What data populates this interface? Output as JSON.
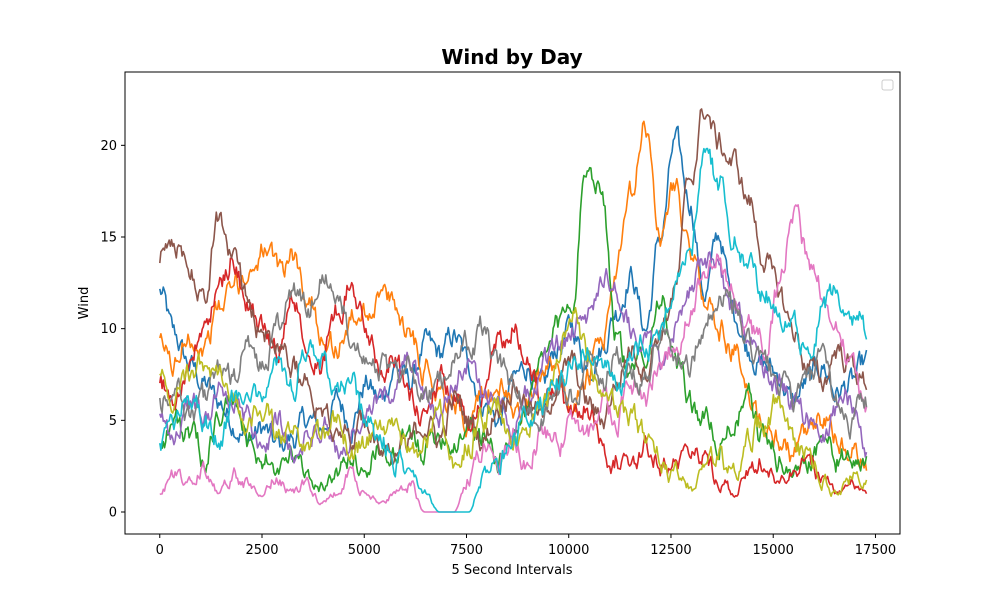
{
  "chart_data": {
    "type": "line",
    "title": "Wind by Day",
    "xlabel": "5 Second Intervals",
    "ylabel": "Wind",
    "xlim": [
      -850,
      18100
    ],
    "ylim": [
      -1.2,
      24.0
    ],
    "x_ticks": [
      0,
      2500,
      5000,
      7500,
      10000,
      12500,
      15000,
      17500
    ],
    "x_tick_labels": [
      "0",
      "2500",
      "5000",
      "7500",
      "10000",
      "12500",
      "15000",
      "17500"
    ],
    "y_ticks": [
      0,
      5,
      10,
      15,
      20
    ],
    "y_tick_labels": [
      "0",
      "5",
      "10",
      "15",
      "20"
    ],
    "grid": false,
    "legend": {
      "placement": "top-right",
      "entries": []
    },
    "x_range": [
      0,
      17280
    ],
    "series": [
      {
        "color": "#1f77b4",
        "values": [
          12.0,
          9.5,
          8.0,
          7.0,
          6.0,
          5.0,
          4.0,
          4.5,
          3.5,
          4.0,
          5.0,
          4.5,
          6.0,
          5.0,
          7.0,
          6.0,
          8.0,
          7.0,
          9.0,
          8.5,
          9.5,
          8.0,
          6.0,
          5.0,
          7.0,
          8.0,
          6.5,
          9.0,
          10.0,
          8.0,
          9.0,
          11.0,
          13.0,
          10.0,
          15.0,
          20.0,
          17.0,
          12.0,
          15.0,
          11.0,
          9.0,
          8.0,
          7.5,
          6.0,
          7.0,
          8.0,
          6.5,
          7.0,
          8.0
        ]
      },
      {
        "color": "#ff7f0e",
        "values": [
          9.0,
          8.0,
          10.0,
          9.0,
          11.0,
          12.0,
          13.0,
          14.5,
          13.0,
          14.0,
          12.0,
          10.0,
          9.0,
          10.5,
          11.0,
          12.0,
          11.0,
          10.0,
          8.0,
          7.0,
          6.0,
          5.0,
          6.0,
          7.0,
          5.5,
          6.0,
          7.0,
          8.0,
          6.0,
          7.0,
          9.0,
          13.0,
          17.0,
          21.0,
          15.0,
          18.0,
          14.0,
          12.0,
          10.0,
          9.0,
          6.0,
          5.0,
          4.0,
          3.0,
          4.0,
          5.0,
          4.0,
          3.0,
          2.5
        ]
      },
      {
        "color": "#2ca02c",
        "values": [
          4.0,
          5.0,
          4.0,
          3.0,
          5.0,
          6.0,
          4.0,
          3.0,
          2.0,
          3.0,
          2.0,
          1.5,
          2.0,
          3.0,
          2.5,
          3.5,
          3.0,
          4.0,
          3.5,
          4.5,
          4.0,
          5.0,
          4.0,
          3.0,
          4.0,
          6.0,
          8.0,
          10.0,
          12.0,
          19.0,
          18.0,
          10.0,
          7.0,
          9.0,
          12.0,
          8.0,
          6.0,
          5.0,
          4.0,
          5.0,
          6.0,
          4.0,
          3.0,
          2.0,
          3.0,
          4.0,
          3.0,
          2.5,
          3.0
        ]
      },
      {
        "color": "#d62728",
        "values": [
          7.0,
          6.0,
          8.0,
          10.0,
          12.0,
          14.0,
          11.0,
          10.0,
          9.0,
          12.0,
          10.0,
          8.0,
          11.0,
          12.5,
          10.0,
          8.0,
          9.0,
          6.0,
          5.0,
          7.0,
          6.0,
          5.0,
          7.0,
          9.0,
          10.5,
          8.0,
          6.0,
          7.0,
          5.0,
          6.0,
          4.0,
          3.0,
          2.0,
          3.5,
          3.0,
          2.5,
          4.0,
          3.0,
          2.0,
          1.0,
          2.0,
          3.0,
          1.5,
          2.0,
          3.0,
          2.0,
          1.0,
          1.5,
          1.0
        ]
      },
      {
        "color": "#9467bd",
        "values": [
          5.0,
          4.0,
          6.0,
          5.0,
          7.0,
          6.0,
          5.0,
          4.0,
          5.0,
          3.0,
          4.0,
          5.0,
          3.0,
          4.0,
          5.0,
          6.0,
          7.0,
          8.0,
          6.0,
          5.0,
          7.0,
          8.0,
          6.0,
          7.0,
          5.0,
          6.0,
          8.0,
          9.0,
          10.0,
          11.0,
          13.0,
          12.0,
          10.0,
          9.0,
          8.0,
          10.0,
          12.0,
          14.0,
          13.0,
          11.0,
          9.0,
          8.0,
          7.0,
          6.0,
          5.0,
          4.0,
          5.0,
          6.0,
          4.0
        ]
      },
      {
        "color": "#8c564b",
        "values": [
          14.0,
          15.0,
          13.0,
          12.0,
          16.0,
          14.0,
          12.0,
          10.0,
          9.0,
          8.0,
          7.0,
          6.0,
          5.0,
          4.0,
          5.0,
          4.0,
          3.0,
          4.0,
          5.0,
          4.0,
          6.0,
          5.0,
          4.0,
          6.0,
          7.0,
          6.0,
          5.0,
          7.0,
          8.0,
          6.0,
          5.0,
          7.0,
          9.0,
          8.0,
          10.0,
          12.0,
          18.0,
          22.0,
          20.0,
          19.0,
          17.0,
          14.0,
          12.0,
          10.0,
          8.0,
          7.0,
          9.0,
          8.0,
          7.0
        ]
      },
      {
        "color": "#e377c2",
        "values": [
          1.0,
          2.0,
          1.5,
          2.5,
          1.0,
          2.0,
          1.5,
          1.0,
          2.0,
          1.0,
          1.5,
          0.5,
          1.0,
          2.0,
          1.0,
          0.5,
          1.0,
          1.5,
          0.0,
          0.0,
          0.0,
          2.0,
          3.0,
          2.5,
          4.0,
          3.0,
          4.5,
          3.5,
          5.0,
          4.0,
          6.0,
          5.0,
          7.0,
          6.0,
          8.0,
          9.0,
          11.0,
          13.0,
          14.0,
          12.0,
          10.0,
          9.0,
          12.0,
          16.0,
          14.0,
          12.0,
          10.0,
          8.0,
          6.0
        ]
      },
      {
        "color": "#7f7f7f",
        "values": [
          6.0,
          7.0,
          5.0,
          6.0,
          8.0,
          7.0,
          9.0,
          8.0,
          10.0,
          12.0,
          11.0,
          13.0,
          12.0,
          10.0,
          9.0,
          8.0,
          7.0,
          8.0,
          6.0,
          7.0,
          8.0,
          9.0,
          10.0,
          8.0,
          7.0,
          6.0,
          5.0,
          7.0,
          6.0,
          8.0,
          7.0,
          9.0,
          8.0,
          7.0,
          10.0,
          9.0,
          8.0,
          10.0,
          12.0,
          11.0,
          9.0,
          8.0,
          7.0,
          6.0,
          7.0,
          8.0,
          6.0,
          5.0,
          6.0
        ]
      },
      {
        "color": "#bcbd22",
        "values": [
          7.0,
          6.0,
          7.5,
          8.0,
          7.0,
          6.0,
          5.0,
          6.0,
          4.0,
          5.0,
          3.0,
          4.0,
          5.0,
          3.5,
          4.0,
          5.0,
          4.5,
          3.0,
          4.0,
          5.0,
          3.0,
          4.0,
          5.0,
          6.0,
          4.0,
          5.0,
          6.0,
          8.0,
          11.0,
          9.0,
          7.0,
          6.0,
          5.0,
          4.0,
          3.0,
          2.0,
          1.5,
          2.0,
          3.0,
          2.0,
          4.0,
          5.0,
          6.0,
          4.0,
          3.0,
          2.0,
          1.0,
          2.0,
          1.5
        ]
      },
      {
        "color": "#17becf",
        "values": [
          4.0,
          5.0,
          6.0,
          5.0,
          4.0,
          6.0,
          7.0,
          6.0,
          8.0,
          7.0,
          9.0,
          8.0,
          6.0,
          7.0,
          5.0,
          4.0,
          3.0,
          2.0,
          1.0,
          0.0,
          0.0,
          0.0,
          2.0,
          3.0,
          4.0,
          5.0,
          6.0,
          7.0,
          8.0,
          9.0,
          8.0,
          7.0,
          8.0,
          9.0,
          10.0,
          12.0,
          14.0,
          20.0,
          18.0,
          15.0,
          13.0,
          12.0,
          11.0,
          10.0,
          9.0,
          11.0,
          12.0,
          11.0,
          10.0
        ]
      }
    ]
  }
}
